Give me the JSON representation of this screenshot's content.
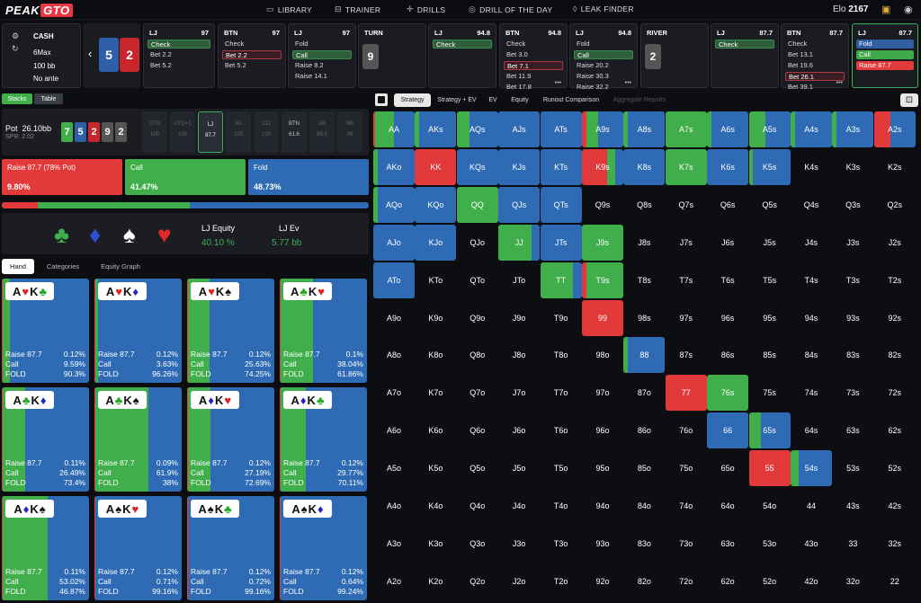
{
  "header": {
    "logo_left": "PEAK",
    "logo_right": "GTO",
    "nav": [
      {
        "label": "LIBRARY",
        "icon": "monitor-icon"
      },
      {
        "label": "TRAINER",
        "icon": "controller-icon"
      },
      {
        "label": "DRILLS",
        "icon": "crosshair-icon"
      },
      {
        "label": "DRILL OF THE DAY",
        "icon": "target-icon"
      },
      {
        "label": "LEAK FINDER",
        "icon": "drop-icon"
      }
    ],
    "elo_label": "Elo",
    "elo_value": "2167"
  },
  "game_info": {
    "type": "CASH",
    "format": "6Max",
    "stack": "100 bb",
    "ante": "No ante"
  },
  "hole_cards": [
    {
      "rank": "5",
      "suit": "diamond",
      "color": "#2f5fa8"
    },
    {
      "rank": "2",
      "suit": "heart",
      "color": "#c7262c"
    }
  ],
  "streets": [
    {
      "pos": "LJ",
      "num": "97",
      "options": [
        {
          "label": "Check",
          "state": "selected-green"
        },
        {
          "label": "Bet 2.2",
          "state": ""
        },
        {
          "label": "Bet 5.2",
          "state": ""
        }
      ]
    },
    {
      "pos": "BTN",
      "num": "97",
      "options": [
        {
          "label": "Check",
          "state": ""
        },
        {
          "label": "Bet 2.2",
          "state": "selected-red"
        },
        {
          "label": "Bet 5.2",
          "state": ""
        }
      ]
    },
    {
      "pos": "LJ",
      "num": "97",
      "options": [
        {
          "label": "Fold",
          "state": ""
        },
        {
          "label": "Call",
          "state": "selected-green"
        },
        {
          "label": "Raise 8.2",
          "state": ""
        },
        {
          "label": "Raise 14.1",
          "state": ""
        }
      ]
    },
    {
      "pos": "TURN",
      "num": "",
      "board": "9",
      "options": []
    },
    {
      "pos": "LJ",
      "num": "94.8",
      "options": [
        {
          "label": "Check",
          "state": "selected-green"
        }
      ]
    },
    {
      "pos": "BTN",
      "num": "94.8",
      "options": [
        {
          "label": "Check",
          "state": ""
        },
        {
          "label": "Bet 3.0",
          "state": ""
        },
        {
          "label": "Bet 7.1",
          "state": "selected-red"
        },
        {
          "label": "Bet 11.9",
          "state": ""
        },
        {
          "label": "Bet 17.8",
          "state": ""
        }
      ],
      "more": "•••"
    },
    {
      "pos": "LJ",
      "num": "94.8",
      "options": [
        {
          "label": "Fold",
          "state": ""
        },
        {
          "label": "Call",
          "state": "selected-green"
        },
        {
          "label": "Raise 20.2",
          "state": ""
        },
        {
          "label": "Raise 30.3",
          "state": ""
        },
        {
          "label": "Raise 32.2",
          "state": ""
        }
      ],
      "more": "•••"
    },
    {
      "pos": "RIVER",
      "num": "",
      "board": "2",
      "options": []
    },
    {
      "pos": "LJ",
      "num": "87.7",
      "options": [
        {
          "label": "Check",
          "state": "selected-green"
        }
      ]
    },
    {
      "pos": "BTN",
      "num": "87.7",
      "options": [
        {
          "label": "Check",
          "state": ""
        },
        {
          "label": "Bet 13.1",
          "state": ""
        },
        {
          "label": "Bet 19.6",
          "state": ""
        },
        {
          "label": "Bet 26.1",
          "state": "selected-red"
        },
        {
          "label": "Bet 39.1",
          "state": ""
        }
      ],
      "more": "•••"
    },
    {
      "pos": "LJ",
      "num": "87.7",
      "active": true,
      "options": [
        {
          "label": "Fold",
          "state": "fill-blue"
        },
        {
          "label": "Call",
          "state": "fill-green"
        },
        {
          "label": "Raise 87.7",
          "state": "fill-red"
        }
      ]
    }
  ],
  "left_tabs": [
    "Stacks",
    "Table"
  ],
  "pot": {
    "label": "Pot",
    "value": "26.10bb",
    "spr": "SPR: 2.02"
  },
  "board": [
    {
      "rank": "7",
      "color": "#3fae4b"
    },
    {
      "rank": "5",
      "color": "#2f5fa8"
    },
    {
      "rank": "2",
      "color": "#c7262c"
    },
    {
      "rank": "9",
      "color": "#555"
    },
    {
      "rank": "2",
      "color": "#555"
    }
  ],
  "seats": [
    {
      "name": "UTG",
      "stack": "100",
      "state": ""
    },
    {
      "name": "UTG+1",
      "stack": "100",
      "state": ""
    },
    {
      "name": "LJ",
      "stack": "87.7",
      "state": "active"
    },
    {
      "name": "HJ",
      "stack": "100",
      "state": ""
    },
    {
      "name": "CO",
      "stack": "100",
      "state": ""
    },
    {
      "name": "BTN",
      "stack": "61.6",
      "state": "btn"
    },
    {
      "name": "SB",
      "stack": "99.5",
      "state": ""
    },
    {
      "name": "BB",
      "stack": "99",
      "state": ""
    }
  ],
  "actions": [
    {
      "label": "Raise 87.7 (78% Pot)",
      "pct": "9.80%",
      "color": "#e23a3a",
      "freq": 9.8
    },
    {
      "label": "Call",
      "pct": "41.47%",
      "color": "#3fae4b",
      "freq": 41.47
    },
    {
      "label": "Fold",
      "pct": "48.73%",
      "color": "#2e6bb4",
      "freq": 48.73
    }
  ],
  "equity": {
    "eq_label": "LJ Equity",
    "eq_value": "40.10 %",
    "ev_label": "LJ Ev",
    "ev_value": "5.77 bb"
  },
  "sub_tabs": [
    "Hand",
    "Categories",
    "Equity Graph"
  ],
  "combos": [
    {
      "cards": [
        {
          "r": "A",
          "s": "♥",
          "c": "#d22"
        },
        {
          "r": "K",
          "s": "♣",
          "c": "#2a2"
        }
      ],
      "raise": "0.12%",
      "call": "9.59%",
      "fold": "90.3%",
      "call_f": 9.59,
      "raise_f": 0.12
    },
    {
      "cards": [
        {
          "r": "A",
          "s": "♥",
          "c": "#d22"
        },
        {
          "r": "K",
          "s": "♦",
          "c": "#22c"
        }
      ],
      "raise": "0.12%",
      "call": "3.63%",
      "fold": "96.26%",
      "call_f": 3.63,
      "raise_f": 0.12
    },
    {
      "cards": [
        {
          "r": "A",
          "s": "♥",
          "c": "#d22"
        },
        {
          "r": "K",
          "s": "♠",
          "c": "#111"
        }
      ],
      "raise": "0.12%",
      "call": "25.63%",
      "fold": "74.25%",
      "call_f": 25.63,
      "raise_f": 0.12
    },
    {
      "cards": [
        {
          "r": "A",
          "s": "♣",
          "c": "#2a2"
        },
        {
          "r": "K",
          "s": "♥",
          "c": "#d22"
        }
      ],
      "raise": "0.1%",
      "call": "38.04%",
      "fold": "61.86%",
      "call_f": 38.04,
      "raise_f": 0.1
    },
    {
      "cards": [
        {
          "r": "A",
          "s": "♣",
          "c": "#2a2"
        },
        {
          "r": "K",
          "s": "♦",
          "c": "#22c"
        }
      ],
      "raise": "0.11%",
      "call": "26.49%",
      "fold": "73.4%",
      "call_f": 26.49,
      "raise_f": 0.11
    },
    {
      "cards": [
        {
          "r": "A",
          "s": "♣",
          "c": "#2a2"
        },
        {
          "r": "K",
          "s": "♠",
          "c": "#111"
        }
      ],
      "raise": "0.09%",
      "call": "61.9%",
      "fold": "38%",
      "call_f": 61.9,
      "raise_f": 0.09
    },
    {
      "cards": [
        {
          "r": "A",
          "s": "♦",
          "c": "#22c"
        },
        {
          "r": "K",
          "s": "♥",
          "c": "#d22"
        }
      ],
      "raise": "0.12%",
      "call": "27.19%",
      "fold": "72.69%",
      "call_f": 27.19,
      "raise_f": 0.12
    },
    {
      "cards": [
        {
          "r": "A",
          "s": "♦",
          "c": "#22c"
        },
        {
          "r": "K",
          "s": "♣",
          "c": "#2a2"
        }
      ],
      "raise": "0.12%",
      "call": "29.77%",
      "fold": "70.11%",
      "call_f": 29.77,
      "raise_f": 0.12
    },
    {
      "cards": [
        {
          "r": "A",
          "s": "♦",
          "c": "#22c"
        },
        {
          "r": "K",
          "s": "♠",
          "c": "#111"
        }
      ],
      "raise": "0.11%",
      "call": "53.02%",
      "fold": "46.87%",
      "call_f": 53.02,
      "raise_f": 0.11
    },
    {
      "cards": [
        {
          "r": "A",
          "s": "♠",
          "c": "#111"
        },
        {
          "r": "K",
          "s": "♥",
          "c": "#d22"
        }
      ],
      "raise": "0.12%",
      "call": "0.71%",
      "fold": "99.16%",
      "call_f": 0.71,
      "raise_f": 0.12
    },
    {
      "cards": [
        {
          "r": "A",
          "s": "♠",
          "c": "#111"
        },
        {
          "r": "K",
          "s": "♣",
          "c": "#2a2"
        }
      ],
      "raise": "0.12%",
      "call": "0.72%",
      "fold": "99.16%",
      "call_f": 0.72,
      "raise_f": 0.12
    },
    {
      "cards": [
        {
          "r": "A",
          "s": "♠",
          "c": "#111"
        },
        {
          "r": "K",
          "s": "♦",
          "c": "#22c"
        }
      ],
      "raise": "0.12%",
      "call": "0.64%",
      "fold": "99.24%",
      "call_f": 0.64,
      "raise_f": 0.12
    }
  ],
  "combo_labels": {
    "raise": "Raise 87.7",
    "call": "Call",
    "fold": "FOLD"
  },
  "right_tabs": [
    "Strategy",
    "Strategy + EV",
    "EV",
    "Equity",
    "Runout Comparison",
    "Aggregate Reports"
  ],
  "ranks": [
    "A",
    "K",
    "Q",
    "J",
    "T",
    "9",
    "8",
    "7",
    "6",
    "5",
    "4",
    "3",
    "2"
  ],
  "matrix_colors": {
    "raise": "#e23a3a",
    "call": "#3fae4b",
    "fold": "#2e6bb4"
  },
  "matrix": {
    "AA": [
      0.05,
      0.45,
      0.5
    ],
    "AKs": [
      0,
      0.1,
      0.9
    ],
    "AQs": [
      0,
      0.3,
      0.7
    ],
    "AJs": [
      0,
      0,
      1
    ],
    "ATs": [
      0,
      0,
      1
    ],
    "A9s": [
      0.1,
      0.3,
      0.6
    ],
    "A8s": [
      0,
      0.1,
      0.9
    ],
    "A7s": [
      0,
      1,
      0
    ],
    "A6s": [
      0,
      0.1,
      0.9
    ],
    "A5s": [
      0,
      0.4,
      0.6
    ],
    "A4s": [
      0,
      0.1,
      0.9
    ],
    "A3s": [
      0,
      0.1,
      0.9
    ],
    "A2s": [
      0.4,
      0,
      0.6
    ],
    "AKo": [
      0,
      0.1,
      0.9
    ],
    "KK": [
      1,
      0,
      0
    ],
    "KQs": [
      0,
      0,
      1
    ],
    "KJs": [
      0,
      0,
      1
    ],
    "KTs": [
      0,
      0,
      1
    ],
    "K9s": [
      0.6,
      0.2,
      0.2
    ],
    "K8s": [
      0,
      0,
      1
    ],
    "K7s": [
      0,
      1,
      0
    ],
    "K6s": [
      0,
      0,
      1
    ],
    "K5s": [
      0,
      0.1,
      0.9
    ],
    "AQo": [
      0,
      0.1,
      0.9
    ],
    "KQo": [
      0,
      0,
      1
    ],
    "QQ": [
      0,
      1,
      0
    ],
    "QJs": [
      0,
      0,
      1
    ],
    "QTs": [
      0,
      0,
      1
    ],
    "AJo": [
      0,
      0,
      1
    ],
    "KJo": [
      0,
      0,
      1
    ],
    "JJ": [
      0,
      0.8,
      0.2
    ],
    "JTs": [
      0,
      0,
      1
    ],
    "J9s": [
      0,
      1,
      0
    ],
    "ATo": [
      0,
      0,
      1
    ],
    "TT": [
      0,
      0.8,
      0.2
    ],
    "T9s": [
      0.1,
      0.9,
      0
    ],
    "99": [
      1,
      0,
      0
    ],
    "88": [
      0,
      0.1,
      0.9
    ],
    "77": [
      1,
      0,
      0
    ],
    "76s": [
      0,
      1,
      0
    ],
    "66": [
      0,
      0,
      1
    ],
    "65s": [
      0,
      0.3,
      0.7
    ],
    "55": [
      1,
      0,
      0
    ],
    "54s": [
      0,
      0.2,
      0.8
    ]
  }
}
